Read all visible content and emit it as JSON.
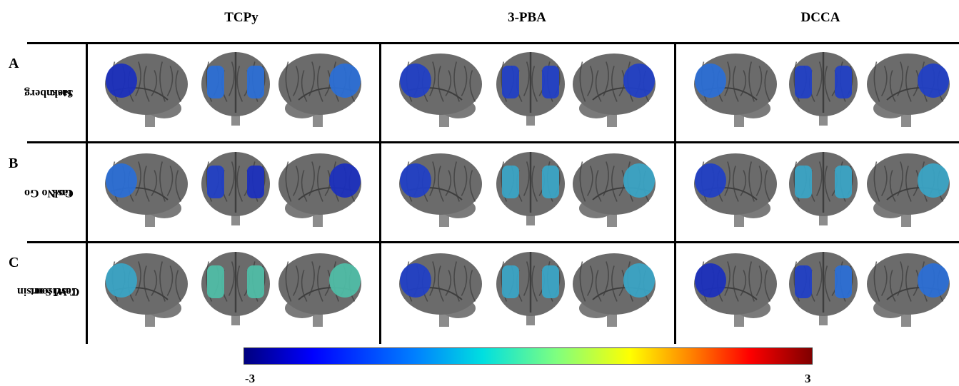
{
  "columns": [
    "TCPy",
    "3-PBA",
    "DCCA"
  ],
  "rows": [
    {
      "letter": "A",
      "label_lines": [
        "Sternberg",
        "task"
      ]
    },
    {
      "letter": "B",
      "label_lines": [
        "Go/No Go",
        "task"
      ]
    },
    {
      "letter": "C",
      "label_lines": [
        "Wisconsin",
        "Card Sort",
        "Test"
      ]
    }
  ],
  "colorbar": {
    "min_label": "-3",
    "max_label": "3",
    "colormap": [
      "#00007f",
      "#0000ff",
      "#007fff",
      "#00dfe0",
      "#7fff7f",
      "#ffff00",
      "#ff7f00",
      "#ff0000",
      "#7f0000"
    ]
  },
  "activation_colors": [
    [
      [
        "#1a2fbf",
        "#2a6fd8",
        "#2a6fd8"
      ],
      [
        "#1f3fc8",
        "#1f3fc8",
        "#1f3fc8"
      ],
      [
        "#2a6fd8",
        "#1f3fc8",
        "#1f3fc8"
      ]
    ],
    [
      [
        "#2a6fd8",
        "#1f3fc8",
        "#1a2fbf"
      ],
      [
        "#1f3fc8",
        "#3aa6c8",
        "#3aa6c8"
      ],
      [
        "#1f3fc8",
        "#3aa6c8",
        "#3aa6c8"
      ]
    ],
    [
      [
        "#3aa6c8",
        "#4fbfa8",
        "#4fbfa8"
      ],
      [
        "#1f3fc8",
        "#3aa6c8",
        "#3aa6c8"
      ],
      [
        "#1a2fbf",
        "#1f3fc8",
        "#2a6fd8"
      ]
    ]
  ],
  "brain_colors": {
    "cortex": "#6b6b6b",
    "sulcus": "#3e3e3e",
    "stem": "#8c8c8c"
  }
}
